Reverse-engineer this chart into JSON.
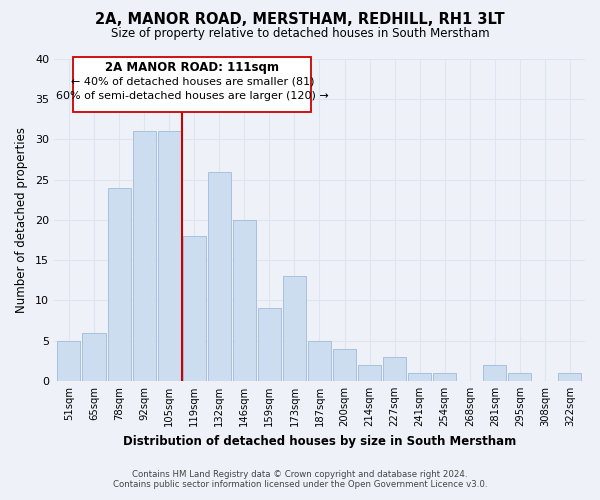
{
  "title": "2A, MANOR ROAD, MERSTHAM, REDHILL, RH1 3LT",
  "subtitle": "Size of property relative to detached houses in South Merstham",
  "xlabel": "Distribution of detached houses by size in South Merstham",
  "ylabel": "Number of detached properties",
  "bar_color": "#cdddf0",
  "bar_edge_color": "#a8c0dc",
  "categories": [
    "51sqm",
    "65sqm",
    "78sqm",
    "92sqm",
    "105sqm",
    "119sqm",
    "132sqm",
    "146sqm",
    "159sqm",
    "173sqm",
    "187sqm",
    "200sqm",
    "214sqm",
    "227sqm",
    "241sqm",
    "254sqm",
    "268sqm",
    "281sqm",
    "295sqm",
    "308sqm",
    "322sqm"
  ],
  "values": [
    5,
    6,
    24,
    31,
    31,
    18,
    26,
    20,
    9,
    13,
    5,
    4,
    2,
    3,
    1,
    1,
    0,
    2,
    1,
    0,
    1
  ],
  "ylim": [
    0,
    40
  ],
  "yticks": [
    0,
    5,
    10,
    15,
    20,
    25,
    30,
    35,
    40
  ],
  "vline_x": 4.5,
  "annotation_line1": "2A MANOR ROAD: 111sqm",
  "annotation_line2": "← 40% of detached houses are smaller (81)",
  "annotation_line3": "60% of semi-detached houses are larger (120) →",
  "footnote1": "Contains HM Land Registry data © Crown copyright and database right 2024.",
  "footnote2": "Contains public sector information licensed under the Open Government Licence v3.0.",
  "grid_color": "#dde6f0",
  "background_color": "#eef2f8",
  "vline_color": "#cc0000",
  "box_edge_color": "#cc0000",
  "box_face_color": "#ffffff"
}
